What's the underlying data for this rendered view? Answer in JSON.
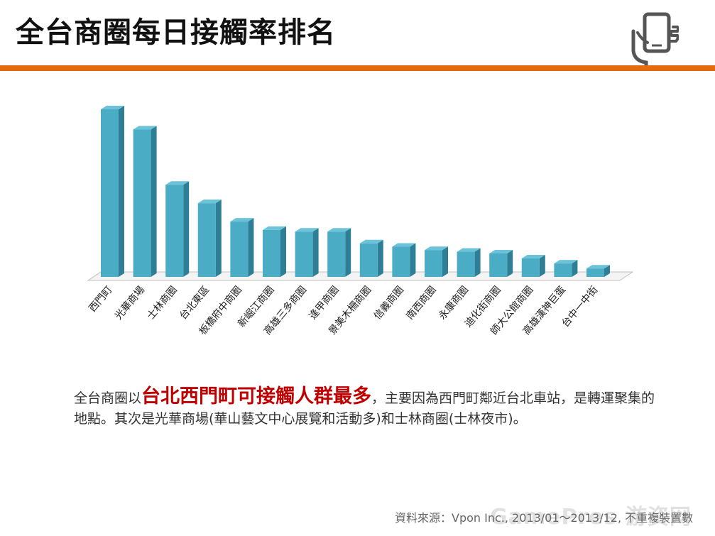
{
  "header": {
    "title": "全台商圈每日接觸率排名",
    "icon": "mobile-phone-hand-icon"
  },
  "colors": {
    "accent": "#e46c0a",
    "bar_front": "#4bacc6",
    "bar_side": "#2e7f95",
    "bar_top": "#6cc3d9",
    "highlight": "#c00000"
  },
  "chart_data": {
    "type": "bar",
    "categories": [
      "西門町",
      "光華商場",
      "士林商圈",
      "台北東區",
      "板橋府中商圈",
      "新崛江商圈",
      "高雄三多商圈",
      "逢甲商圈",
      "景美木柵商圈",
      "信義商圈",
      "南西商圈",
      "永康商圈",
      "迪化街商圈",
      "師大公館商圈",
      "高雄漢神巨蛋",
      "台中一中街"
    ],
    "values": [
      100,
      88,
      55,
      44,
      33,
      28,
      27,
      27,
      20,
      18,
      16,
      15,
      14,
      11,
      8,
      5
    ],
    "title": "",
    "xlabel": "",
    "ylabel": "",
    "ylim": [
      0,
      100
    ],
    "grid": false,
    "legend": "none",
    "style": "3d-column"
  },
  "description": {
    "part1": "全台商圈以",
    "highlight": "台北西門町可接觸人群最多",
    "part2": "，主要因為西門町鄰近台北車站，是轉運聚集的地點。其次是光華商場(華山藝文中心展覽和活動多)和士林商圈(士林夜市)。"
  },
  "footer": {
    "source": "資料來源：Vpon Inc., 2013/01～2013/12, 不重複裝置數",
    "watermark": "GamePres 游资网"
  }
}
